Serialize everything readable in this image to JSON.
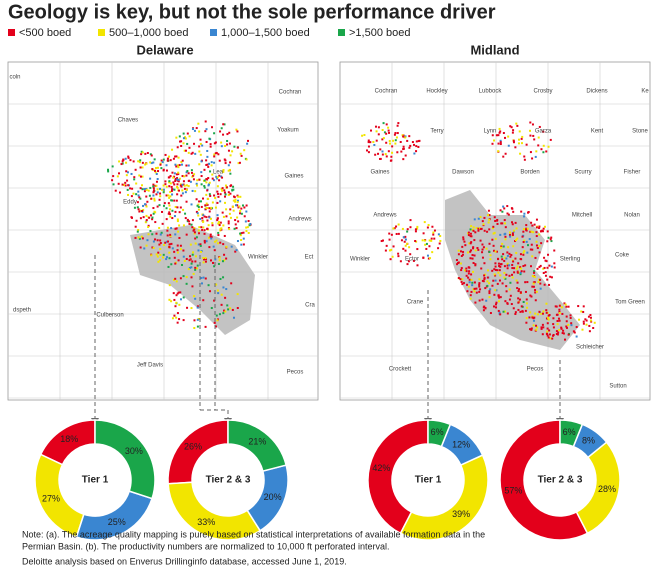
{
  "header": {
    "title": "Geology is key, but not the sole performance driver"
  },
  "legend": {
    "items": [
      {
        "label": "<500 boed",
        "color": "#e3001b"
      },
      {
        "label": "500–1,000 boed",
        "color": "#f2e500"
      },
      {
        "label": "1,000–1,500 boed",
        "color": "#3a86d1"
      },
      {
        "label": ">1,500 boed",
        "color": "#1aa64a"
      }
    ]
  },
  "maps": [
    {
      "title": "Delaware",
      "labels": [
        "coln",
        "Cochran",
        "Chaves",
        "Yoakum",
        "Lea",
        "Gaines",
        "Eddy",
        "Andrews",
        "Winkler",
        "Ect",
        "Culberson",
        "dspeth",
        "Cra",
        "Jeff Davis",
        "Pecos"
      ]
    },
    {
      "title": "Midland",
      "labels": [
        "Cochran",
        "Hockley",
        "Lubbock",
        "Crosby",
        "Dickens",
        "Ke",
        "Terry",
        "Lynn",
        "Garza",
        "Kent",
        "Stone",
        "Gaines",
        "Dawson",
        "Borden",
        "Scurry",
        "Fisher",
        "Andrews",
        "Mitchell",
        "Nolan",
        "Winkler",
        "Ector",
        "Sterling",
        "Coke",
        "Crane",
        "Tom Green",
        "Schleicher",
        "Pecos",
        "Crockett",
        "Sutton"
      ]
    }
  ],
  "chart_data": [
    {
      "type": "pie",
      "title": "Tier 1",
      "values": [
        18,
        27,
        25,
        30
      ],
      "value_labels": [
        "18%",
        "27%",
        "25%",
        "30%"
      ]
    },
    {
      "type": "pie",
      "title": "Tier 2 & 3",
      "values": [
        26,
        33,
        20,
        21
      ],
      "value_labels": [
        "26%",
        "33%",
        "20%",
        "21%"
      ]
    },
    {
      "type": "pie",
      "title": "Tier 1",
      "values": [
        42,
        39,
        12,
        6
      ],
      "value_labels": [
        "42%",
        "39%",
        "12%",
        "6%"
      ]
    },
    {
      "type": "pie",
      "title": "Tier 2 & 3",
      "values": [
        57,
        28,
        8,
        6
      ],
      "value_labels": [
        "57%",
        "28%",
        "8%",
        "6%"
      ]
    }
  ],
  "notes": [
    "Note: (a). The acreage quality mapping is purely based on statistical interpretations of available formation data in the",
    "Permian Basin. (b). The productivity numbers are normalized to 10,000 ft perforated interval.",
    "Deloitte analysis based on Enverus Drillinginfo database, accessed June 1, 2019."
  ]
}
